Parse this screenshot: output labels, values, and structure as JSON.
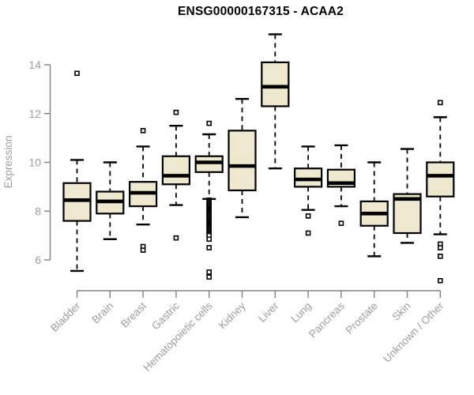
{
  "chart_data": {
    "type": "boxplot",
    "title": "ENSG00000167315 - ACAA2",
    "xlabel": "",
    "ylabel": "Expression",
    "yticks": [
      6,
      8,
      10,
      12,
      14
    ],
    "ylim": [
      4.8,
      15.7
    ],
    "grid": false,
    "legend": null,
    "categories": [
      "Bladder",
      "Brain",
      "Breast",
      "Gastric",
      "Hematopoietic cells",
      "Kidney",
      "Liver",
      "Lung",
      "Pancreas",
      "Prostate",
      "Skin",
      "Unknown / Other"
    ],
    "series": [
      {
        "category": "Bladder",
        "whisker_low": 5.55,
        "q1": 7.6,
        "median": 8.45,
        "q3": 9.15,
        "whisker_high": 10.1,
        "outliers": [
          13.65
        ]
      },
      {
        "category": "Brain",
        "whisker_low": 6.85,
        "q1": 7.9,
        "median": 8.4,
        "q3": 8.8,
        "whisker_high": 10.0,
        "outliers": []
      },
      {
        "category": "Breast",
        "whisker_low": 7.45,
        "q1": 8.2,
        "median": 8.75,
        "q3": 9.2,
        "whisker_high": 10.65,
        "outliers": [
          11.3,
          6.55,
          6.4
        ]
      },
      {
        "category": "Gastric",
        "whisker_low": 8.25,
        "q1": 9.1,
        "median": 9.45,
        "q3": 10.25,
        "whisker_high": 11.5,
        "outliers": [
          12.05,
          6.9
        ]
      },
      {
        "category": "Hematopoietic cells",
        "whisker_low": 8.5,
        "q1": 9.6,
        "median": 10.0,
        "q3": 10.25,
        "whisker_high": 11.15,
        "outliers": [
          11.6,
          8.45,
          8.4,
          8.35,
          8.3,
          8.25,
          8.2,
          8.15,
          8.1,
          8.05,
          8.0,
          7.95,
          7.9,
          7.85,
          7.8,
          7.75,
          7.7,
          7.65,
          7.6,
          7.55,
          7.5,
          7.45,
          7.4,
          7.35,
          7.3,
          7.25,
          7.2,
          7.15,
          7.1,
          7.05,
          7.0,
          6.85,
          6.5,
          5.5,
          5.3
        ]
      },
      {
        "category": "Kidney",
        "whisker_low": 7.75,
        "q1": 8.85,
        "median": 9.85,
        "q3": 11.3,
        "whisker_high": 12.6,
        "outliers": []
      },
      {
        "category": "Liver",
        "whisker_low": 9.75,
        "q1": 12.3,
        "median": 13.1,
        "q3": 14.1,
        "whisker_high": 15.25,
        "outliers": []
      },
      {
        "category": "Lung",
        "whisker_low": 8.05,
        "q1": 9.0,
        "median": 9.3,
        "q3": 9.75,
        "whisker_high": 10.65,
        "outliers": [
          7.8,
          7.1
        ]
      },
      {
        "category": "Pancreas",
        "whisker_low": 8.2,
        "q1": 9.0,
        "median": 9.15,
        "q3": 9.7,
        "whisker_high": 10.7,
        "outliers": [
          7.5
        ]
      },
      {
        "category": "Prostate",
        "whisker_low": 6.15,
        "q1": 7.4,
        "median": 7.9,
        "q3": 8.4,
        "whisker_high": 10.0,
        "outliers": []
      },
      {
        "category": "Skin",
        "whisker_low": 6.7,
        "q1": 7.1,
        "median": 8.5,
        "q3": 8.7,
        "whisker_high": 10.55,
        "outliers": []
      },
      {
        "category": "Unknown / Other",
        "whisker_low": 7.05,
        "q1": 8.6,
        "median": 9.45,
        "q3": 10.0,
        "whisker_high": 11.85,
        "outliers": [
          12.45,
          6.65,
          6.5,
          6.15,
          5.15
        ]
      }
    ],
    "style": {
      "box_fill": "#EDE8CE",
      "box_border": "#000000",
      "median_color": "#000000",
      "whisker_color": "#000000",
      "whisker_style": "dashed",
      "outlier_marker": "open-square",
      "outlier_fill": "#FFFFFF",
      "axis_color": "#808080",
      "tick_label_color": "#9E9E9E",
      "title_color": "#000000",
      "background": "#FFFFFF"
    }
  }
}
